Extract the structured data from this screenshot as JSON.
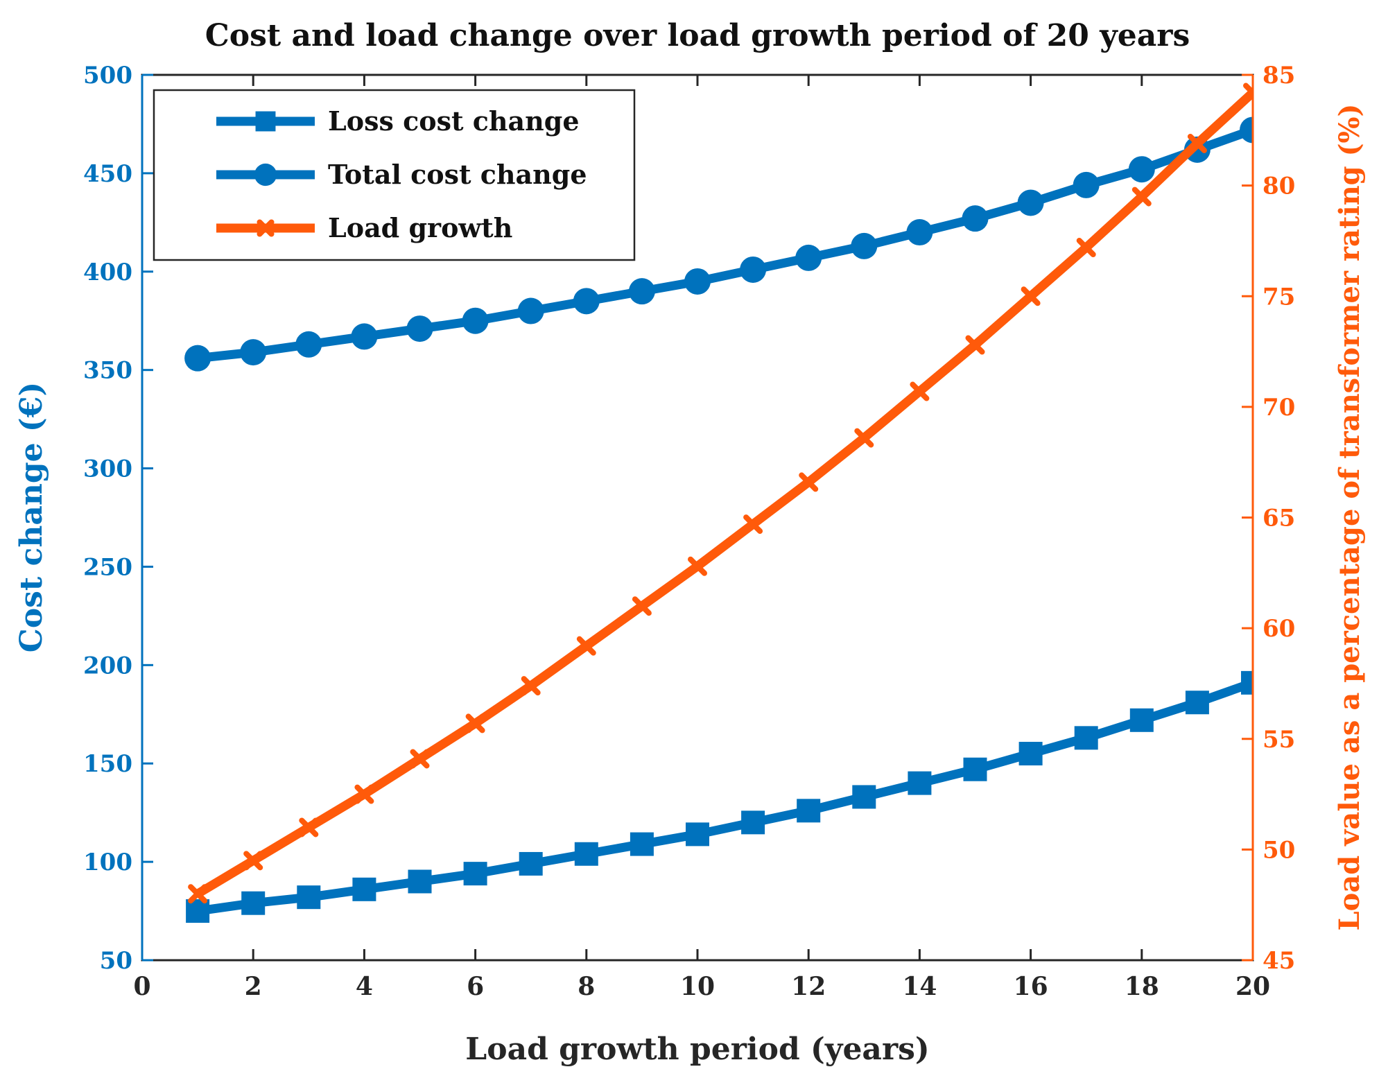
{
  "chart_data": {
    "type": "line",
    "title": "Cost and load change over load growth period of 20 years",
    "xlabel": "Load growth period (years)",
    "ylabel_left": "Cost change (€)",
    "ylabel_right": "Load value as a percentage of transformer rating (%)",
    "xlim": [
      0,
      20
    ],
    "ylim_left": [
      50,
      500
    ],
    "ylim_right": [
      45,
      85
    ],
    "x_ticks": [
      0,
      2,
      4,
      6,
      8,
      10,
      12,
      14,
      16,
      18,
      20
    ],
    "y_left_ticks": [
      50,
      100,
      150,
      200,
      250,
      300,
      350,
      400,
      450,
      500
    ],
    "y_right_ticks": [
      45,
      50,
      55,
      60,
      65,
      70,
      75,
      80,
      85
    ],
    "legend_position": "top-left",
    "grid": false,
    "colors": {
      "blue": "#0072bd",
      "orange": "#ff5a0a",
      "axis": "#262626"
    },
    "x": [
      1,
      2,
      3,
      4,
      5,
      6,
      7,
      8,
      9,
      10,
      11,
      12,
      13,
      14,
      15,
      16,
      17,
      18,
      19,
      20
    ],
    "series": [
      {
        "name": "Loss cost change",
        "axis": "left",
        "marker": "square",
        "color": "#0072bd",
        "values": [
          75,
          79,
          82,
          86,
          90,
          94,
          99,
          104,
          109,
          114,
          120,
          126,
          133,
          140,
          147,
          155,
          163,
          172,
          181,
          191
        ]
      },
      {
        "name": "Total cost change",
        "axis": "left",
        "marker": "circle",
        "color": "#0072bd",
        "values": [
          356,
          359,
          363,
          367,
          371,
          375,
          380,
          385,
          390,
          395,
          401,
          407,
          413,
          420,
          427,
          435,
          444,
          452,
          462,
          472
        ]
      },
      {
        "name": "Load growth",
        "axis": "right",
        "marker": "x",
        "color": "#ff5a0a",
        "values": [
          48.0,
          49.5,
          51.0,
          52.5,
          54.1,
          55.7,
          57.4,
          59.2,
          61.0,
          62.8,
          64.7,
          66.6,
          68.6,
          70.7,
          72.8,
          75.0,
          77.2,
          79.5,
          81.9,
          84.2
        ]
      }
    ]
  }
}
